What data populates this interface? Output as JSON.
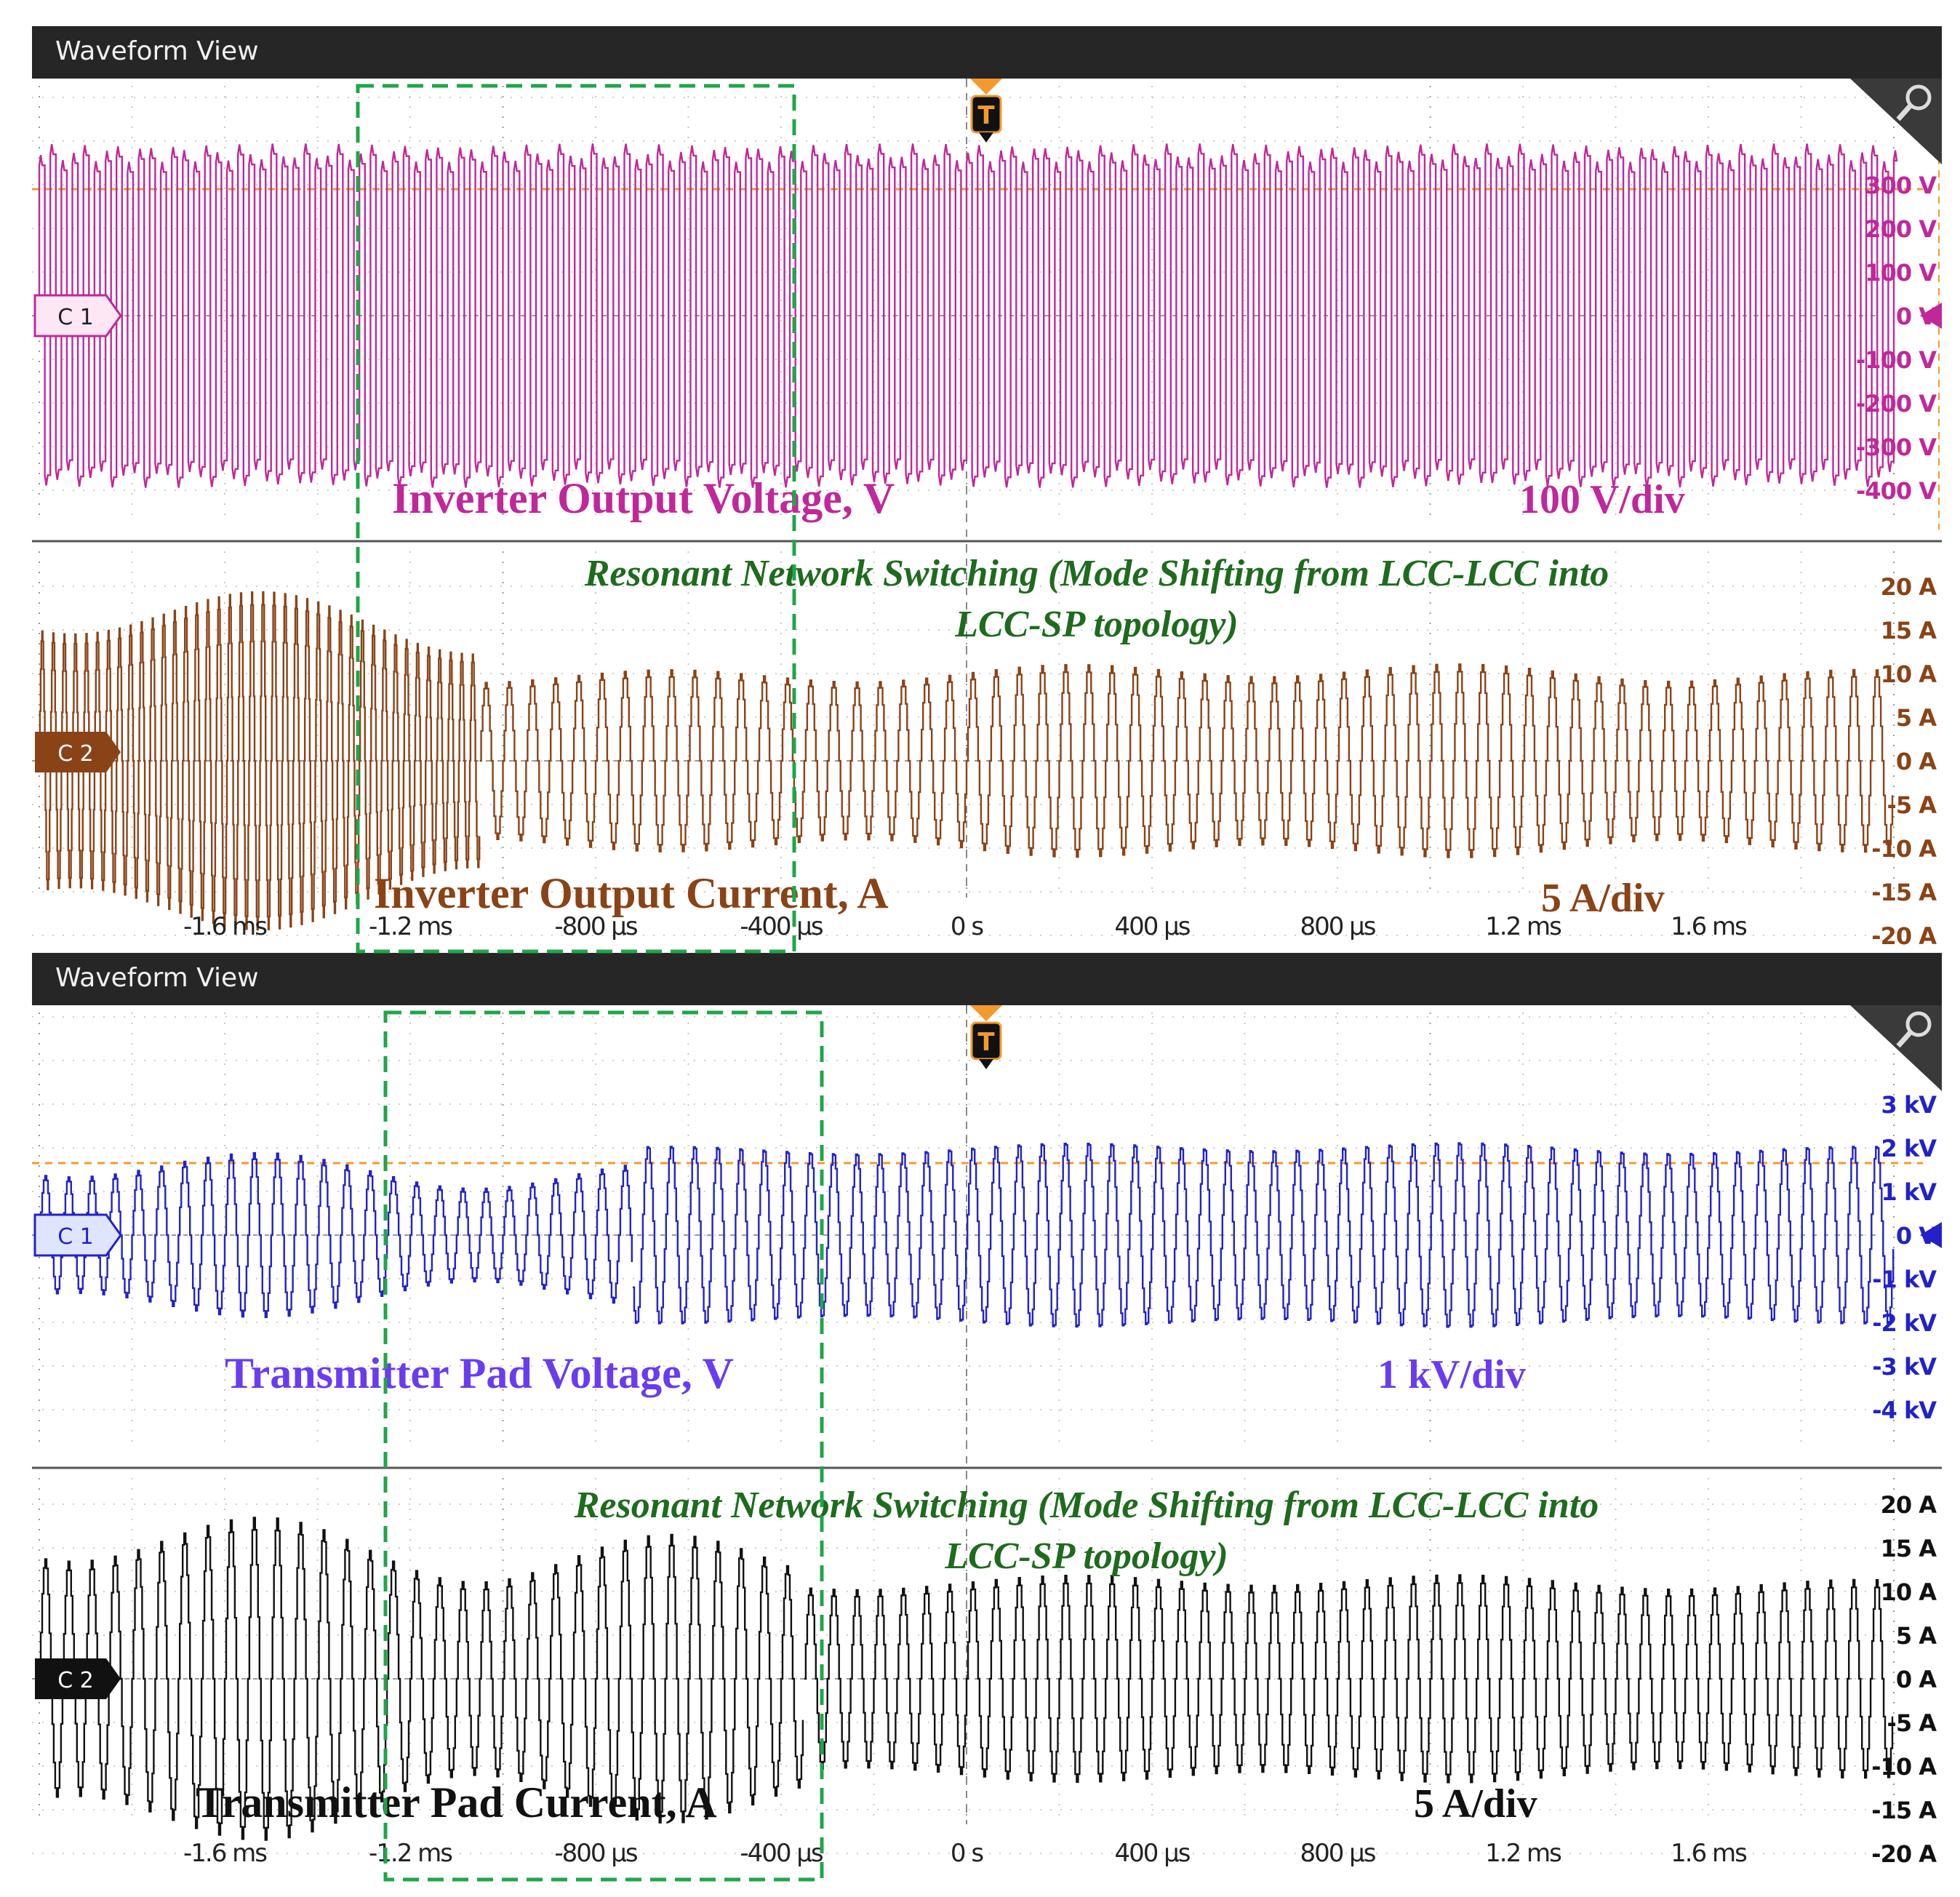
{
  "scopes": [
    {
      "title": "Waveform View",
      "trigger_label": "T",
      "ch1": {
        "badge": "C 1",
        "name": "Inverter Output Voltage, V",
        "scale": "100 V/div",
        "color": "#c0289a",
        "ticks": [
          "300 V",
          "200 V",
          "100 V",
          "0 V",
          "-100 V",
          "-200 V",
          "-300 V",
          "-400 V"
        ]
      },
      "ch2": {
        "badge": "C 2",
        "name": "Inverter Output Current, A",
        "scale": "5 A/div",
        "color": "#8a4316",
        "ticks": [
          "20 A",
          "15 A",
          "10 A",
          "5 A",
          "0 A",
          "-5 A",
          "-10 A",
          "-15 A",
          "-20 A"
        ]
      },
      "note_line1": "Resonant Network Switching (Mode Shifting from LCC-LCC into",
      "note_line2": "LCC-SP topology)",
      "time_ticks": [
        "-1.6 ms",
        "-1.2 ms",
        "-800 µs",
        "-400 µs",
        "0 s",
        "400 µs",
        "800 µs",
        "1.2 ms",
        "1.6 ms"
      ]
    },
    {
      "title": "Waveform View",
      "trigger_label": "T",
      "ch1": {
        "badge": "C 1",
        "name": "Transmitter Pad Voltage, V",
        "scale": "1 kV/div",
        "color": "#2222c8",
        "ticks": [
          "3 kV",
          "2 kV",
          "1 kV",
          "0 V",
          "-1 kV",
          "-2 kV",
          "-3 kV",
          "-4 kV"
        ]
      },
      "ch2": {
        "badge": "C 2",
        "name": "Transmitter Pad Current, A",
        "scale": "5 A/div",
        "color": "#111111",
        "ticks": [
          "20 A",
          "15 A",
          "10 A",
          "5 A",
          "0 A",
          "-5 A",
          "-10 A",
          "-15 A",
          "-20 A"
        ]
      },
      "note_line1": "Resonant Network Switching (Mode Shifting from LCC-LCC into",
      "note_line2": "LCC-SP topology)",
      "time_ticks": [
        "-1.6 ms",
        "-1.2 ms",
        "-800 µs",
        "-400 µs",
        "0 s",
        "400 µs",
        "800 µs",
        "1.2 ms",
        "1.6 ms"
      ]
    }
  ],
  "colors": {
    "highlight_box": "#1fa64a",
    "title_bar": "#262626",
    "trigger": "#f39a2e",
    "pad_voltage_label": "#6a3cf0"
  },
  "chart_data": [
    {
      "type": "line",
      "title": "Inverter Output Voltage, V",
      "xlabel": "",
      "ylabel": "",
      "x_unit": "s",
      "xlim": [
        -0.002,
        0.002
      ],
      "ylim": [
        -400,
        300
      ],
      "waveform": "square",
      "series": [
        {
          "name": "Inverter Output Voltage, V",
          "amplitude_V": 350,
          "segments": [
            {
              "t_start": -0.002,
              "t_end": 0.002,
              "cycles_per_ms": 42
            }
          ]
        }
      ]
    },
    {
      "type": "line",
      "title": "Inverter Output Current, A",
      "xlim": [
        -0.002,
        0.002
      ],
      "ylim": [
        -20,
        20
      ],
      "waveform": "stepped",
      "series": [
        {
          "name": "Inverter Output Current, A",
          "segments": [
            {
              "t_start": -0.002,
              "t_end": -0.00105,
              "amplitude_A": 16,
              "cycles_per_ms": 42
            },
            {
              "t_start": -0.00105,
              "t_end": 0.002,
              "amplitude_A": 10,
              "cycles_per_ms": 20
            }
          ]
        }
      ]
    },
    {
      "type": "line",
      "title": "Transmitter Pad Voltage, V",
      "xlim": [
        -0.002,
        0.002
      ],
      "ylim": [
        -4000,
        3000
      ],
      "series": [
        {
          "name": "Transmitter Pad Voltage, V",
          "segments": [
            {
              "t_start": -0.002,
              "t_end": -0.00072,
              "amplitude_V": 1500,
              "cycles_per_ms": 20
            },
            {
              "t_start": -0.00072,
              "t_end": 0.002,
              "amplitude_V": 2000,
              "cycles_per_ms": 20
            }
          ]
        }
      ]
    },
    {
      "type": "line",
      "title": "Transmitter Pad Current, A",
      "xlim": [
        -0.002,
        0.002
      ],
      "ylim": [
        -20,
        20
      ],
      "series": [
        {
          "name": "Transmitter Pad Current, A",
          "segments": [
            {
              "t_start": -0.002,
              "t_end": -0.00035,
              "amplitude_A": 15,
              "cycles_per_ms": 20
            },
            {
              "t_start": -0.00035,
              "t_end": 0.002,
              "amplitude_A": 11,
              "cycles_per_ms": 20
            }
          ]
        }
      ]
    }
  ]
}
